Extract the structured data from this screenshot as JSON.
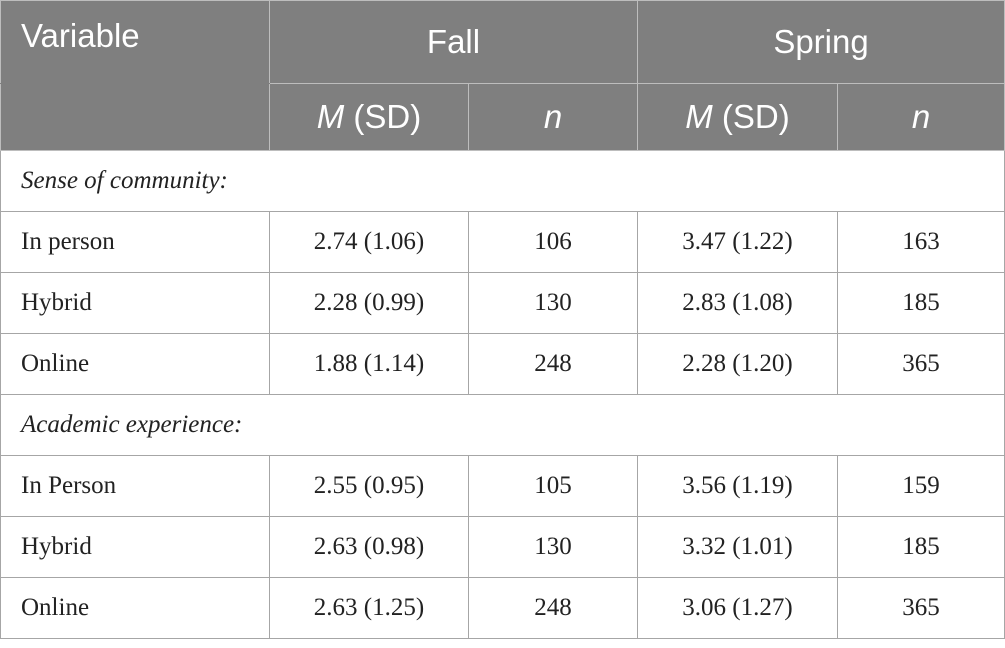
{
  "header": {
    "variable_label": "Variable",
    "groups": [
      "Fall",
      "Spring"
    ],
    "sub": {
      "mean_italic": "M",
      "mean_rest": " (SD)",
      "n_label": "n"
    }
  },
  "sections": [
    {
      "title": "Sense of community:",
      "rows": [
        {
          "label": "In person",
          "fall_msd": "2.74 (1.06)",
          "fall_n": "106",
          "spring_msd": "3.47 (1.22)",
          "spring_n": "163"
        },
        {
          "label": "Hybrid",
          "fall_msd": "2.28 (0.99)",
          "fall_n": "130",
          "spring_msd": "2.83 (1.08)",
          "spring_n": "185"
        },
        {
          "label": "Online",
          "fall_msd": "1.88 (1.14)",
          "fall_n": "248",
          "spring_msd": "2.28 (1.20)",
          "spring_n": "365"
        }
      ]
    },
    {
      "title": "Academic experience:",
      "rows": [
        {
          "label": "In Person",
          "fall_msd": "2.55 (0.95)",
          "fall_n": "105",
          "spring_msd": "3.56 (1.19)",
          "spring_n": "159"
        },
        {
          "label": "Hybrid",
          "fall_msd": "2.63 (0.98)",
          "fall_n": "130",
          "spring_msd": "3.32 (1.01)",
          "spring_n": "185"
        },
        {
          "label": "Online",
          "fall_msd": "2.63 (1.25)",
          "fall_n": "248",
          "spring_msd": "3.06 (1.27)",
          "spring_n": "365"
        }
      ]
    }
  ],
  "colors": {
    "header_bg": "#7f7f7f",
    "header_text": "#ffffff",
    "border": "#a6a6a6"
  }
}
